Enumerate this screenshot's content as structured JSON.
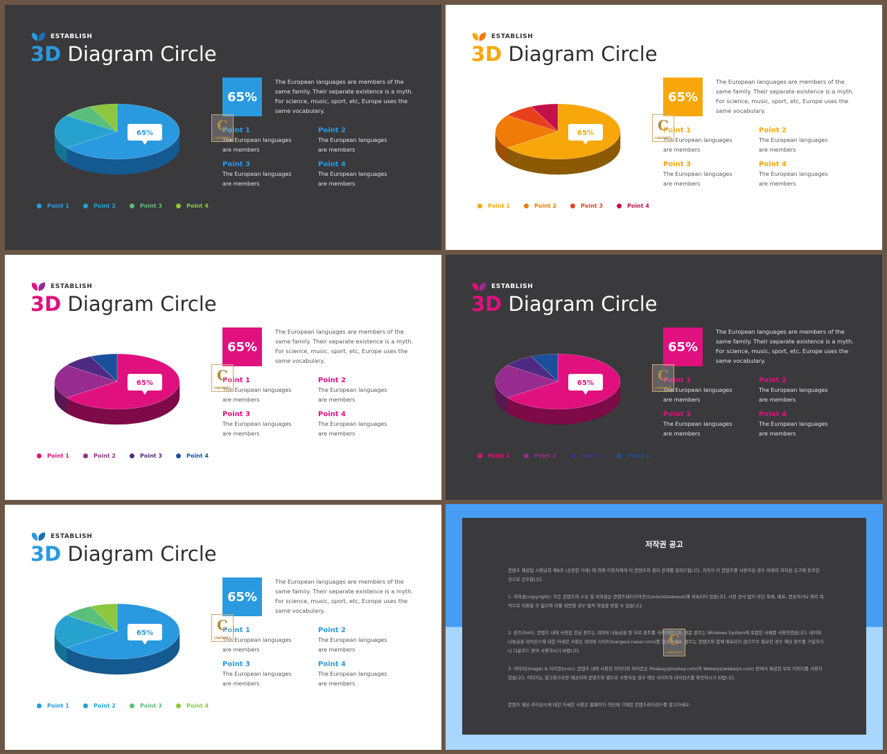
{
  "slides": [
    {
      "theme": "dark",
      "brand": "ESTABLISH",
      "title_num": "3D",
      "title_rest": "Diagram Circle",
      "badge": "65%",
      "bubble": "65%",
      "description": "The European languages are members of the same family. Their separate existence is a myth. For science, music, sport, etc, Europe uses the same vocabulary.",
      "points": [
        {
          "name": "Point 1",
          "desc": "The European languages are members"
        },
        {
          "name": "Point 2",
          "desc": "The European languages are members"
        },
        {
          "name": "Point 3",
          "desc": "The European languages are members"
        },
        {
          "name": "Point 4",
          "desc": "The European languages are members"
        }
      ],
      "legend": [
        "Point 1",
        "Point 2",
        "Point 3",
        "Point 4"
      ],
      "colors": {
        "accent": "#2a9ae0",
        "leaf_a": "#2a9ae0",
        "leaf_b": "#1a6fb8",
        "legend": [
          "#2a9ae0",
          "#27a2cf",
          "#5abf7a",
          "#8dc63f"
        ],
        "pie_top": [
          "#2a9ae0",
          "#27a2cf",
          "#5abf7a",
          "#8dc63f"
        ],
        "pie_side": [
          "#14598f",
          "#137395",
          "#2e8a4f",
          "#5e8f23"
        ]
      }
    },
    {
      "theme": "light",
      "brand": "ESTABLISH",
      "title_num": "3D",
      "title_rest": "Diagram Circle",
      "badge": "65%",
      "bubble": "65%",
      "description": "The European languages are members of the same family. Their separate existence is a myth. For science, music, sport, etc, Europe uses the same vocabulary.",
      "points": [
        {
          "name": "Point 1",
          "desc": "The European languages are members"
        },
        {
          "name": "Point 2",
          "desc": "The European languages are members"
        },
        {
          "name": "Point 3",
          "desc": "The European languages are members"
        },
        {
          "name": "Point 4",
          "desc": "The European languages are members"
        }
      ],
      "legend": [
        "Point 1",
        "Point 2",
        "Point 3",
        "Point 4"
      ],
      "colors": {
        "accent": "#f7a70a",
        "leaf_a": "#f7a70a",
        "leaf_b": "#f07b06",
        "legend": [
          "#f7a70a",
          "#f07b06",
          "#e8401c",
          "#c4104a"
        ],
        "pie_top": [
          "#f7a70a",
          "#f07b06",
          "#e8401c",
          "#c4104a"
        ],
        "pie_side": [
          "#8c5a05",
          "#a04f04",
          "#8a2410",
          "#6e0a2a"
        ]
      }
    },
    {
      "theme": "light",
      "brand": "ESTABLISH",
      "title_num": "3D",
      "title_rest": "Diagram Circle",
      "badge": "65%",
      "bubble": "65%",
      "description": "The European languages are members of the same family. Their separate existence is a myth. For science, music, sport, etc, Europe uses the same vocabulary.",
      "points": [
        {
          "name": "Point 1",
          "desc": "The European languages are members"
        },
        {
          "name": "Point 2",
          "desc": "The European languages are members"
        },
        {
          "name": "Point 3",
          "desc": "The European languages are members"
        },
        {
          "name": "Point 4",
          "desc": "The European languages are members"
        }
      ],
      "legend": [
        "Point 1",
        "Point 2",
        "Point 3",
        "Point 4"
      ],
      "colors": {
        "accent": "#e0107f",
        "leaf_a": "#e0107f",
        "leaf_b": "#9a2a8e",
        "legend": [
          "#e0107f",
          "#982b8f",
          "#4e2a82",
          "#1b4f9c"
        ],
        "pie_top": [
          "#e0107f",
          "#982b8f",
          "#4e2a82",
          "#1b4f9c"
        ],
        "pie_side": [
          "#7e0a48",
          "#561852",
          "#2b1748",
          "#0f2d58"
        ]
      }
    },
    {
      "theme": "dark",
      "brand": "ESTABLISH",
      "title_num": "3D",
      "title_rest": "Diagram Circle",
      "badge": "65%",
      "bubble": "65%",
      "description": "The European languages are members of the same family. Their separate existence is a myth. For science, music, sport, etc, Europe uses the same vocabulary.",
      "points": [
        {
          "name": "Point 1",
          "desc": "The European languages are members"
        },
        {
          "name": "Point 2",
          "desc": "The European languages are members"
        },
        {
          "name": "Point 3",
          "desc": "The European languages are members"
        },
        {
          "name": "Point 4",
          "desc": "The European languages are members"
        }
      ],
      "legend": [
        "Point 1",
        "Point 2",
        "Point 3",
        "Point 4"
      ],
      "colors": {
        "accent": "#e0107f",
        "leaf_a": "#e0107f",
        "leaf_b": "#9a2a8e",
        "legend": [
          "#e0107f",
          "#982b8f",
          "#4e2a82",
          "#1b4f9c"
        ],
        "pie_top": [
          "#e0107f",
          "#982b8f",
          "#4e2a82",
          "#1b4f9c"
        ],
        "pie_side": [
          "#7e0a48",
          "#561852",
          "#2b1748",
          "#0f2d58"
        ]
      }
    },
    {
      "theme": "light",
      "brand": "ESTABLISH",
      "title_num": "3D",
      "title_rest": "Diagram Circle",
      "badge": "65%",
      "bubble": "65%",
      "description": "The European languages are members of the same family. Their separate existence is a myth. For science, music, sport, etc, Europe uses the same vocabulary.",
      "points": [
        {
          "name": "Point 1",
          "desc": "The European languages are members"
        },
        {
          "name": "Point 2",
          "desc": "The European languages are members"
        },
        {
          "name": "Point 3",
          "desc": "The European languages are members"
        },
        {
          "name": "Point 4",
          "desc": "The European languages are members"
        }
      ],
      "legend": [
        "Point 1",
        "Point 2",
        "Point 3",
        "Point 4"
      ],
      "colors": {
        "accent": "#2a9ae0",
        "leaf_a": "#2a9ae0",
        "leaf_b": "#1a6fb8",
        "legend": [
          "#2a9ae0",
          "#27a2cf",
          "#5abf7a",
          "#8dc63f"
        ],
        "pie_top": [
          "#2a9ae0",
          "#27a2cf",
          "#5abf7a",
          "#8dc63f"
        ],
        "pie_side": [
          "#14598f",
          "#137395",
          "#2e8a4f",
          "#5e8f23"
        ]
      }
    }
  ],
  "pie_values": [
    65,
    20,
    8,
    7
  ],
  "watermark": {
    "letter": "C",
    "caption": "CONTENTS"
  },
  "notice": {
    "title": "저작권 공고",
    "paragraphs": [
      "콘텐츠 제공업 시행규칙 제8조 (공정한 거래) 에 의해 이용자에게 이 콘텐츠의 권리 관계를 알려드립니다. 귀하가 이 콘텐츠를 사용하실 경우 아래의 저작권 공고에 동의한 것으로 간주합니다.",
      "1. 저작권(copyright): 모든 콘텐츠의 소유 및 저작권은 콘텐츠테이크아웃(Contentstakeout)에 귀속되어 있습니다. 사전 승낙 없이 무단 복제, 배포, 전송하거나 영리 목적으로 이용할 수 없으며 이를 위반할 경우 법적 처벌을 받을 수 있습니다.",
      "2. 폰트(font): 콘텐츠 내에 사용된 한글 폰트는 네이버 나눔글꼴 등 무료 폰트를 사용하였으며, 영문 폰트는 Windows System에 포함된 서체를 사용하였습니다. 네이버 나눔글꼴 라이선스에 대한 자세한 사항은 네이버 사이트(hangeul.naver.com)를 참고하세요. 폰트는 콘텐츠와 함께 배포되지 않으므로 필요한 경우 해당 폰트를 구입하거나 다운로드 받아 사용하시기 바랍니다.",
      "3. 이미지(image) & 아이콘(icon): 콘텐츠 내에 사용된 이미지와 아이콘은 Pixabay(pixabay.com)와 Webalys(webalys.com) 등에서 제공한 무료 이미지를 사용하였습니다. 이미지는 참고용으로만 제공되며 콘텐츠와 별도로 사용하실 경우 해당 사이트의 라이선스를 확인하시기 바랍니다.",
      "콘텐츠 제공 라이선스에 대한 자세한 사항은 홈페이지 하단에 기재된 콘텐츠라이선스를 참고하세요."
    ]
  }
}
